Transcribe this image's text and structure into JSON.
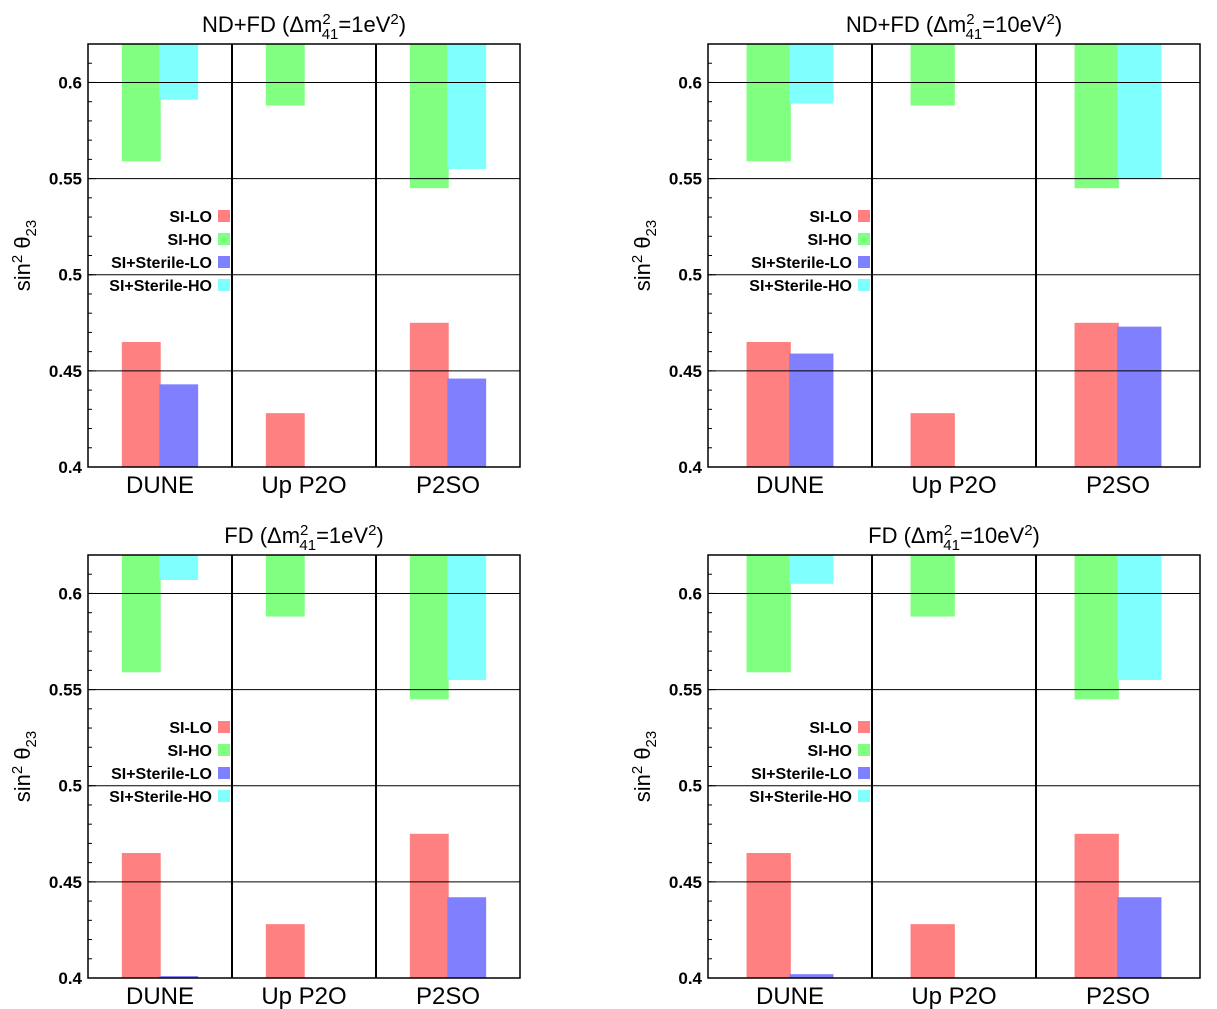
{
  "chart_data": [
    {
      "type": "bar",
      "title": "ND+FD (Δm²₄₁=1eV²)",
      "title_parts": {
        "pre": "ND+FD (Δm",
        "sup1": "2",
        "sub": "41",
        "mid": "=1eV",
        "sup2": "2",
        "post": ")"
      },
      "ylabel": "sin² θ₂₃",
      "ylim": [
        0.4,
        0.62
      ],
      "yticks": [
        "0.4",
        "0.45",
        "0.5",
        "0.55",
        "0.6"
      ],
      "categories": [
        "DUNE",
        "Up P2O",
        "P2SO"
      ],
      "series": [
        {
          "name": "SI-LO",
          "color": "#ff8080",
          "ranges": [
            [
              0.4,
              0.465
            ],
            [
              0.4,
              0.428
            ],
            [
              0.4,
              0.475
            ]
          ]
        },
        {
          "name": "SI-HO",
          "color": "#80ff80",
          "ranges": [
            [
              0.559,
              0.62
            ],
            [
              0.588,
              0.62
            ],
            [
              0.545,
              0.62
            ]
          ]
        },
        {
          "name": "SI+Sterile-LO",
          "color": "#8080ff",
          "ranges": [
            [
              0.4,
              0.443
            ],
            null,
            [
              0.4,
              0.446
            ]
          ]
        },
        {
          "name": "SI+Sterile-HO",
          "color": "#80ffff",
          "ranges": [
            [
              0.591,
              0.62
            ],
            null,
            [
              0.555,
              0.62
            ]
          ]
        }
      ],
      "grid": true,
      "legend": "center"
    },
    {
      "type": "bar",
      "title": "ND+FD (Δm²₄₁=10eV²)",
      "title_parts": {
        "pre": "ND+FD (Δm",
        "sup1": "2",
        "sub": "41",
        "mid": "=10eV",
        "sup2": "2",
        "post": ")"
      },
      "ylabel": "sin² θ₂₃",
      "ylim": [
        0.4,
        0.62
      ],
      "yticks": [
        "0.4",
        "0.45",
        "0.5",
        "0.55",
        "0.6"
      ],
      "categories": [
        "DUNE",
        "Up P2O",
        "P2SO"
      ],
      "series": [
        {
          "name": "SI-LO",
          "color": "#ff8080",
          "ranges": [
            [
              0.4,
              0.465
            ],
            [
              0.4,
              0.428
            ],
            [
              0.4,
              0.475
            ]
          ]
        },
        {
          "name": "SI-HO",
          "color": "#80ff80",
          "ranges": [
            [
              0.559,
              0.62
            ],
            [
              0.588,
              0.62
            ],
            [
              0.545,
              0.62
            ]
          ]
        },
        {
          "name": "SI+Sterile-LO",
          "color": "#8080ff",
          "ranges": [
            [
              0.4,
              0.459
            ],
            null,
            [
              0.4,
              0.473
            ]
          ]
        },
        {
          "name": "SI+Sterile-HO",
          "color": "#80ffff",
          "ranges": [
            [
              0.589,
              0.62
            ],
            null,
            [
              0.55,
              0.62
            ]
          ]
        }
      ],
      "grid": true,
      "legend": "center"
    },
    {
      "type": "bar",
      "title": "FD (Δm²₄₁=1eV²)",
      "title_parts": {
        "pre": "FD (Δm",
        "sup1": "2",
        "sub": "41",
        "mid": "=1eV",
        "sup2": "2",
        "post": ")"
      },
      "ylabel": "sin² θ₂₃",
      "ylim": [
        0.4,
        0.62
      ],
      "yticks": [
        "0.4",
        "0.45",
        "0.5",
        "0.55",
        "0.6"
      ],
      "categories": [
        "DUNE",
        "Up P2O",
        "P2SO"
      ],
      "series": [
        {
          "name": "SI-LO",
          "color": "#ff8080",
          "ranges": [
            [
              0.4,
              0.465
            ],
            [
              0.4,
              0.428
            ],
            [
              0.4,
              0.475
            ]
          ]
        },
        {
          "name": "SI-HO",
          "color": "#80ff80",
          "ranges": [
            [
              0.559,
              0.62
            ],
            [
              0.588,
              0.62
            ],
            [
              0.545,
              0.62
            ]
          ]
        },
        {
          "name": "SI+Sterile-LO",
          "color": "#8080ff",
          "ranges": [
            [
              0.4,
              0.401
            ],
            null,
            [
              0.4,
              0.442
            ]
          ]
        },
        {
          "name": "SI+Sterile-HO",
          "color": "#80ffff",
          "ranges": [
            [
              0.607,
              0.62
            ],
            null,
            [
              0.555,
              0.62
            ]
          ]
        }
      ],
      "grid": true,
      "legend": "center"
    },
    {
      "type": "bar",
      "title": "FD (Δm²₄₁=10eV²)",
      "title_parts": {
        "pre": "FD (Δm",
        "sup1": "2",
        "sub": "41",
        "mid": "=10eV",
        "sup2": "2",
        "post": ")"
      },
      "ylabel": "sin² θ₂₃",
      "ylim": [
        0.4,
        0.62
      ],
      "yticks": [
        "0.4",
        "0.45",
        "0.5",
        "0.55",
        "0.6"
      ],
      "categories": [
        "DUNE",
        "Up P2O",
        "P2SO"
      ],
      "series": [
        {
          "name": "SI-LO",
          "color": "#ff8080",
          "ranges": [
            [
              0.4,
              0.465
            ],
            [
              0.4,
              0.428
            ],
            [
              0.4,
              0.475
            ]
          ]
        },
        {
          "name": "SI-HO",
          "color": "#80ff80",
          "ranges": [
            [
              0.559,
              0.62
            ],
            [
              0.588,
              0.62
            ],
            [
              0.545,
              0.62
            ]
          ]
        },
        {
          "name": "SI+Sterile-LO",
          "color": "#8080ff",
          "ranges": [
            [
              0.4,
              0.402
            ],
            null,
            [
              0.4,
              0.442
            ]
          ]
        },
        {
          "name": "SI+Sterile-HO",
          "color": "#80ffff",
          "ranges": [
            [
              0.605,
              0.62
            ],
            null,
            [
              0.555,
              0.62
            ]
          ]
        }
      ],
      "grid": true,
      "legend": "center"
    }
  ]
}
